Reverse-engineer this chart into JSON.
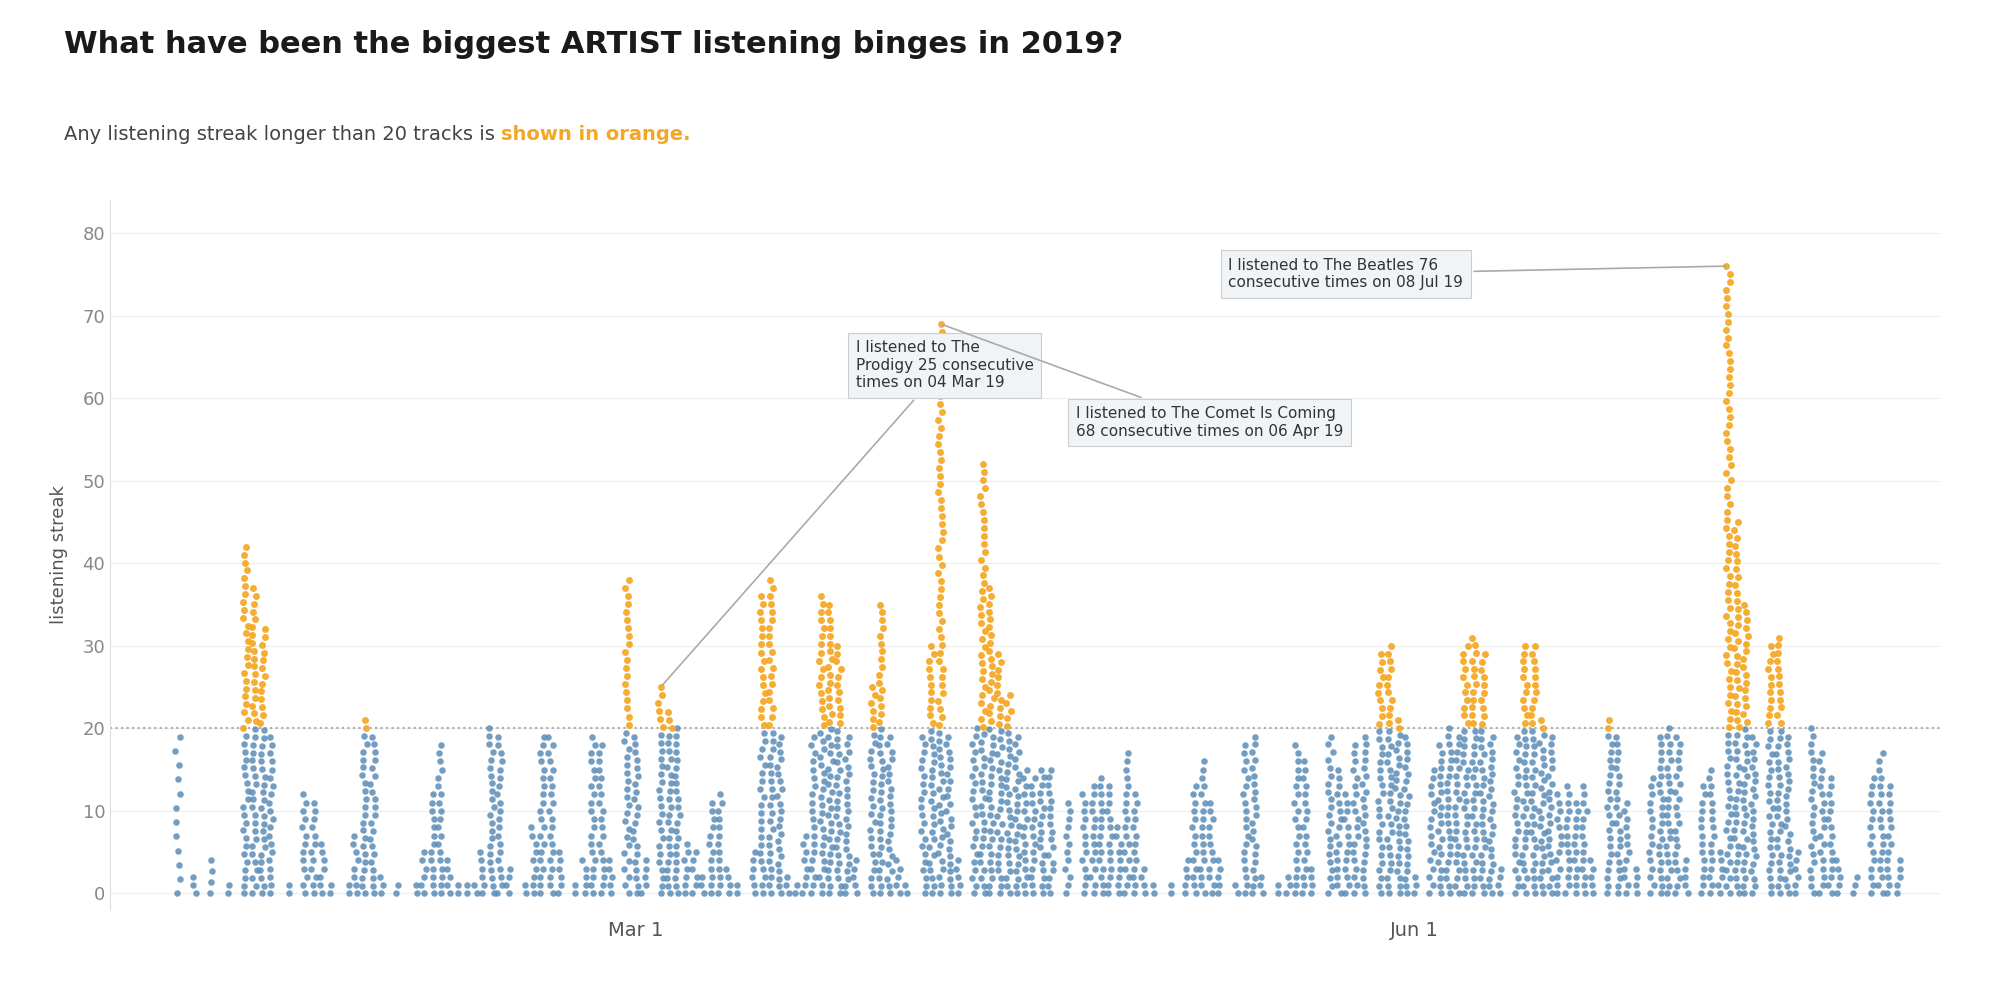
{
  "title": "What have been the biggest ARTIST listening binges in 2019?",
  "subtitle_plain": "Any listening streak longer than 20 tracks is ",
  "subtitle_orange": "shown in orange.",
  "orange_threshold": 20,
  "ylabel": "listening streak",
  "yticks": [
    0,
    10,
    20,
    30,
    40,
    50,
    60,
    70,
    80
  ],
  "ylim": [
    -2,
    84
  ],
  "xlim": [
    -3,
    213
  ],
  "color_blue": "#5b8db8",
  "color_orange": "#f5a623",
  "background_color": "#ffffff",
  "title_color": "#1a1a1a",
  "subtitle_color": "#444444",
  "axis_label_color": "#555555",
  "tick_color": "#888888",
  "grid_color": "#eeeeee",
  "threshold_line_color": "#aaaaaa",
  "annotation_bg": "#f0f4f7",
  "annotation_border": "#cccccc",
  "annotation_text_color": "#333333",
  "title_fontsize": 22,
  "subtitle_fontsize": 14,
  "ylabel_fontsize": 13,
  "tick_fontsize": 13,
  "xtick_fontsize": 14,
  "annot_fontsize": 11,
  "x_tick_labels": [
    "Mar 1",
    "Jun 1"
  ],
  "x_tick_days": [
    59,
    151
  ],
  "date_range_days": 210,
  "day_columns": [
    {
      "day": 5,
      "max_val": 19,
      "n": 12
    },
    {
      "day": 7,
      "max_val": 2,
      "n": 3
    },
    {
      "day": 9,
      "max_val": 4,
      "n": 4
    },
    {
      "day": 11,
      "max_val": 1,
      "n": 2
    },
    {
      "day": 13,
      "max_val": 42,
      "n": 45
    },
    {
      "day": 14,
      "max_val": 37,
      "n": 40
    },
    {
      "day": 15,
      "max_val": 32,
      "n": 35
    },
    {
      "day": 16,
      "max_val": 19,
      "n": 20
    },
    {
      "day": 18,
      "max_val": 1,
      "n": 2
    },
    {
      "day": 20,
      "max_val": 12,
      "n": 13
    },
    {
      "day": 21,
      "max_val": 11,
      "n": 12
    },
    {
      "day": 22,
      "max_val": 6,
      "n": 7
    },
    {
      "day": 23,
      "max_val": 1,
      "n": 2
    },
    {
      "day": 25,
      "max_val": 1,
      "n": 2
    },
    {
      "day": 26,
      "max_val": 7,
      "n": 8
    },
    {
      "day": 27,
      "max_val": 21,
      "n": 23
    },
    {
      "day": 28,
      "max_val": 19,
      "n": 21
    },
    {
      "day": 29,
      "max_val": 2,
      "n": 3
    },
    {
      "day": 31,
      "max_val": 1,
      "n": 2
    },
    {
      "day": 33,
      "max_val": 1,
      "n": 2
    },
    {
      "day": 34,
      "max_val": 5,
      "n": 6
    },
    {
      "day": 35,
      "max_val": 12,
      "n": 13
    },
    {
      "day": 36,
      "max_val": 18,
      "n": 19
    },
    {
      "day": 37,
      "max_val": 4,
      "n": 5
    },
    {
      "day": 38,
      "max_val": 1,
      "n": 2
    },
    {
      "day": 39,
      "max_val": 1,
      "n": 2
    },
    {
      "day": 40,
      "max_val": 1,
      "n": 2
    },
    {
      "day": 41,
      "max_val": 5,
      "n": 6
    },
    {
      "day": 42,
      "max_val": 20,
      "n": 22
    },
    {
      "day": 43,
      "max_val": 19,
      "n": 20
    },
    {
      "day": 44,
      "max_val": 3,
      "n": 4
    },
    {
      "day": 46,
      "max_val": 1,
      "n": 2
    },
    {
      "day": 47,
      "max_val": 8,
      "n": 9
    },
    {
      "day": 48,
      "max_val": 19,
      "n": 20
    },
    {
      "day": 49,
      "max_val": 19,
      "n": 20
    },
    {
      "day": 50,
      "max_val": 5,
      "n": 6
    },
    {
      "day": 52,
      "max_val": 1,
      "n": 2
    },
    {
      "day": 53,
      "max_val": 4,
      "n": 5
    },
    {
      "day": 54,
      "max_val": 19,
      "n": 20
    },
    {
      "day": 55,
      "max_val": 18,
      "n": 19
    },
    {
      "day": 56,
      "max_val": 4,
      "n": 5
    },
    {
      "day": 58,
      "max_val": 38,
      "n": 40
    },
    {
      "day": 59,
      "max_val": 19,
      "n": 21
    },
    {
      "day": 60,
      "max_val": 4,
      "n": 5
    },
    {
      "day": 62,
      "max_val": 25,
      "n": 27
    },
    {
      "day": 63,
      "max_val": 22,
      "n": 24
    },
    {
      "day": 64,
      "max_val": 20,
      "n": 22
    },
    {
      "day": 65,
      "max_val": 6,
      "n": 7
    },
    {
      "day": 66,
      "max_val": 5,
      "n": 6
    },
    {
      "day": 67,
      "max_val": 2,
      "n": 3
    },
    {
      "day": 68,
      "max_val": 11,
      "n": 12
    },
    {
      "day": 69,
      "max_val": 12,
      "n": 13
    },
    {
      "day": 70,
      "max_val": 3,
      "n": 4
    },
    {
      "day": 71,
      "max_val": 1,
      "n": 2
    },
    {
      "day": 73,
      "max_val": 5,
      "n": 6
    },
    {
      "day": 74,
      "max_val": 36,
      "n": 38
    },
    {
      "day": 75,
      "max_val": 38,
      "n": 40
    },
    {
      "day": 76,
      "max_val": 19,
      "n": 22
    },
    {
      "day": 77,
      "max_val": 2,
      "n": 3
    },
    {
      "day": 78,
      "max_val": 1,
      "n": 2
    },
    {
      "day": 79,
      "max_val": 7,
      "n": 8
    },
    {
      "day": 80,
      "max_val": 19,
      "n": 20
    },
    {
      "day": 81,
      "max_val": 36,
      "n": 38
    },
    {
      "day": 82,
      "max_val": 35,
      "n": 38
    },
    {
      "day": 83,
      "max_val": 30,
      "n": 33
    },
    {
      "day": 84,
      "max_val": 19,
      "n": 22
    },
    {
      "day": 85,
      "max_val": 4,
      "n": 5
    },
    {
      "day": 87,
      "max_val": 25,
      "n": 27
    },
    {
      "day": 88,
      "max_val": 35,
      "n": 38
    },
    {
      "day": 89,
      "max_val": 19,
      "n": 22
    },
    {
      "day": 90,
      "max_val": 4,
      "n": 5
    },
    {
      "day": 91,
      "max_val": 1,
      "n": 2
    },
    {
      "day": 93,
      "max_val": 19,
      "n": 21
    },
    {
      "day": 94,
      "max_val": 30,
      "n": 33
    },
    {
      "day": 95,
      "max_val": 69,
      "n": 72
    },
    {
      "day": 96,
      "max_val": 19,
      "n": 22
    },
    {
      "day": 97,
      "max_val": 4,
      "n": 5
    },
    {
      "day": 99,
      "max_val": 20,
      "n": 22
    },
    {
      "day": 100,
      "max_val": 52,
      "n": 55
    },
    {
      "day": 101,
      "max_val": 37,
      "n": 40
    },
    {
      "day": 102,
      "max_val": 29,
      "n": 32
    },
    {
      "day": 103,
      "max_val": 24,
      "n": 27
    },
    {
      "day": 104,
      "max_val": 19,
      "n": 22
    },
    {
      "day": 105,
      "max_val": 15,
      "n": 16
    },
    {
      "day": 106,
      "max_val": 14,
      "n": 15
    },
    {
      "day": 107,
      "max_val": 15,
      "n": 17
    },
    {
      "day": 108,
      "max_val": 15,
      "n": 17
    },
    {
      "day": 110,
      "max_val": 11,
      "n": 12
    },
    {
      "day": 112,
      "max_val": 12,
      "n": 13
    },
    {
      "day": 113,
      "max_val": 13,
      "n": 14
    },
    {
      "day": 114,
      "max_val": 14,
      "n": 15
    },
    {
      "day": 115,
      "max_val": 13,
      "n": 14
    },
    {
      "day": 116,
      "max_val": 8,
      "n": 9
    },
    {
      "day": 117,
      "max_val": 17,
      "n": 18
    },
    {
      "day": 118,
      "max_val": 12,
      "n": 13
    },
    {
      "day": 119,
      "max_val": 3,
      "n": 4
    },
    {
      "day": 120,
      "max_val": 1,
      "n": 2
    },
    {
      "day": 122,
      "max_val": 1,
      "n": 2
    },
    {
      "day": 124,
      "max_val": 4,
      "n": 5
    },
    {
      "day": 125,
      "max_val": 13,
      "n": 14
    },
    {
      "day": 126,
      "max_val": 16,
      "n": 17
    },
    {
      "day": 127,
      "max_val": 11,
      "n": 12
    },
    {
      "day": 128,
      "max_val": 4,
      "n": 5
    },
    {
      "day": 130,
      "max_val": 1,
      "n": 2
    },
    {
      "day": 131,
      "max_val": 18,
      "n": 19
    },
    {
      "day": 132,
      "max_val": 19,
      "n": 21
    },
    {
      "day": 133,
      "max_val": 2,
      "n": 3
    },
    {
      "day": 135,
      "max_val": 1,
      "n": 2
    },
    {
      "day": 136,
      "max_val": 2,
      "n": 3
    },
    {
      "day": 137,
      "max_val": 18,
      "n": 19
    },
    {
      "day": 138,
      "max_val": 16,
      "n": 17
    },
    {
      "day": 139,
      "max_val": 3,
      "n": 4
    },
    {
      "day": 141,
      "max_val": 19,
      "n": 21
    },
    {
      "day": 142,
      "max_val": 15,
      "n": 16
    },
    {
      "day": 143,
      "max_val": 12,
      "n": 13
    },
    {
      "day": 144,
      "max_val": 18,
      "n": 19
    },
    {
      "day": 145,
      "max_val": 19,
      "n": 21
    },
    {
      "day": 147,
      "max_val": 29,
      "n": 32
    },
    {
      "day": 148,
      "max_val": 30,
      "n": 33
    },
    {
      "day": 149,
      "max_val": 21,
      "n": 24
    },
    {
      "day": 150,
      "max_val": 19,
      "n": 22
    },
    {
      "day": 151,
      "max_val": 2,
      "n": 3
    },
    {
      "day": 153,
      "max_val": 15,
      "n": 16
    },
    {
      "day": 154,
      "max_val": 18,
      "n": 20
    },
    {
      "day": 155,
      "max_val": 20,
      "n": 22
    },
    {
      "day": 156,
      "max_val": 19,
      "n": 21
    },
    {
      "day": 157,
      "max_val": 30,
      "n": 33
    },
    {
      "day": 158,
      "max_val": 31,
      "n": 34
    },
    {
      "day": 159,
      "max_val": 29,
      "n": 32
    },
    {
      "day": 160,
      "max_val": 19,
      "n": 22
    },
    {
      "day": 161,
      "max_val": 3,
      "n": 4
    },
    {
      "day": 163,
      "max_val": 19,
      "n": 21
    },
    {
      "day": 164,
      "max_val": 30,
      "n": 33
    },
    {
      "day": 165,
      "max_val": 30,
      "n": 33
    },
    {
      "day": 166,
      "max_val": 21,
      "n": 24
    },
    {
      "day": 167,
      "max_val": 19,
      "n": 21
    },
    {
      "day": 168,
      "max_val": 12,
      "n": 13
    },
    {
      "day": 169,
      "max_val": 13,
      "n": 14
    },
    {
      "day": 170,
      "max_val": 11,
      "n": 12
    },
    {
      "day": 171,
      "max_val": 13,
      "n": 14
    },
    {
      "day": 172,
      "max_val": 4,
      "n": 5
    },
    {
      "day": 174,
      "max_val": 21,
      "n": 23
    },
    {
      "day": 175,
      "max_val": 19,
      "n": 21
    },
    {
      "day": 176,
      "max_val": 11,
      "n": 12
    },
    {
      "day": 177,
      "max_val": 3,
      "n": 4
    },
    {
      "day": 179,
      "max_val": 14,
      "n": 15
    },
    {
      "day": 180,
      "max_val": 19,
      "n": 21
    },
    {
      "day": 181,
      "max_val": 20,
      "n": 22
    },
    {
      "day": 182,
      "max_val": 19,
      "n": 21
    },
    {
      "day": 183,
      "max_val": 4,
      "n": 5
    },
    {
      "day": 185,
      "max_val": 13,
      "n": 14
    },
    {
      "day": 186,
      "max_val": 15,
      "n": 16
    },
    {
      "day": 187,
      "max_val": 5,
      "n": 6
    },
    {
      "day": 188,
      "max_val": 76,
      "n": 80
    },
    {
      "day": 189,
      "max_val": 45,
      "n": 48
    },
    {
      "day": 190,
      "max_val": 35,
      "n": 38
    },
    {
      "day": 191,
      "max_val": 19,
      "n": 22
    },
    {
      "day": 193,
      "max_val": 30,
      "n": 33
    },
    {
      "day": 194,
      "max_val": 31,
      "n": 34
    },
    {
      "day": 195,
      "max_val": 19,
      "n": 22
    },
    {
      "day": 196,
      "max_val": 5,
      "n": 6
    },
    {
      "day": 198,
      "max_val": 20,
      "n": 22
    },
    {
      "day": 199,
      "max_val": 17,
      "n": 18
    },
    {
      "day": 200,
      "max_val": 14,
      "n": 15
    },
    {
      "day": 201,
      "max_val": 4,
      "n": 5
    },
    {
      "day": 203,
      "max_val": 2,
      "n": 3
    },
    {
      "day": 205,
      "max_val": 14,
      "n": 15
    },
    {
      "day": 206,
      "max_val": 17,
      "n": 18
    },
    {
      "day": 207,
      "max_val": 13,
      "n": 14
    },
    {
      "day": 208,
      "max_val": 4,
      "n": 5
    }
  ],
  "prodigy_day": 62,
  "prodigy_val": 25,
  "comet_day": 95,
  "comet_val": 69,
  "beatles_day": 188,
  "beatles_val": 76
}
